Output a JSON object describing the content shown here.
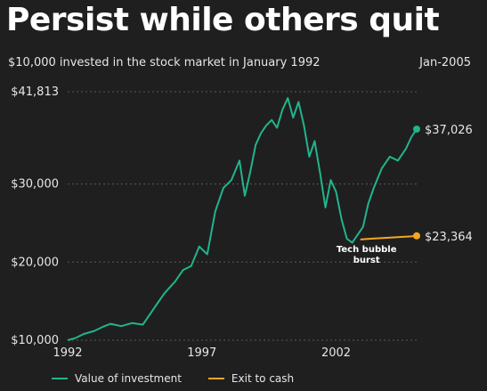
{
  "title": "Persist while others quit",
  "subtitle": "$10,000 invested in the stock market in January 1992",
  "end_date_label": "Jan-2005",
  "colors": {
    "investment": "#21b48d",
    "cash": "#f5a623",
    "grid": "#5a5a5a",
    "text": "#e6e6e6"
  },
  "chart_data": {
    "type": "line",
    "ylim": [
      10000,
      41813
    ],
    "xlim": [
      1992.0,
      2005.0
    ],
    "y_ticks": [
      {
        "value": 41813,
        "label": "$41,813"
      },
      {
        "value": 30000,
        "label": "$30,000"
      },
      {
        "value": 20000,
        "label": "$20,000"
      },
      {
        "value": 10000,
        "label": "$10,000"
      }
    ],
    "x_ticks": [
      {
        "value": 1992,
        "label": "1992"
      },
      {
        "value": 1997,
        "label": "1997"
      },
      {
        "value": 2002,
        "label": "2002"
      }
    ],
    "grid": true,
    "legend_placement": "bottom",
    "series": [
      {
        "name": "Value of investment",
        "color_key": "investment",
        "end_label": "$37,026",
        "x": [
          1992.0,
          1992.3,
          1992.6,
          1993.0,
          1993.3,
          1993.6,
          1994.0,
          1994.4,
          1994.8,
          1995.0,
          1995.3,
          1995.6,
          1996.0,
          1996.3,
          1996.6,
          1996.9,
          1997.2,
          1997.5,
          1997.8,
          1998.1,
          1998.4,
          1998.6,
          1998.8,
          1999.0,
          1999.2,
          1999.4,
          1999.6,
          1999.8,
          2000.0,
          2000.2,
          2000.4,
          2000.6,
          2000.8,
          2001.0,
          2001.2,
          2001.4,
          2001.6,
          2001.8,
          2002.0,
          2002.2,
          2002.4,
          2002.6,
          2002.8,
          2003.0,
          2003.2,
          2003.4,
          2003.7,
          2004.0,
          2004.3,
          2004.6,
          2004.8,
          2005.0
        ],
        "y": [
          10000,
          10300,
          10800,
          11200,
          11700,
          12100,
          11800,
          12200,
          12000,
          13000,
          14500,
          16000,
          17500,
          19000,
          19500,
          22000,
          21000,
          26500,
          29500,
          30500,
          33000,
          28500,
          31500,
          35000,
          36500,
          37500,
          38200,
          37200,
          39500,
          41000,
          38500,
          40500,
          37500,
          33500,
          35500,
          31500,
          27000,
          30500,
          29000,
          25500,
          23000,
          22500,
          23500,
          24500,
          27500,
          29500,
          32000,
          33500,
          33000,
          34500,
          36000,
          37026
        ]
      },
      {
        "name": "Exit to cash",
        "color_key": "cash",
        "end_label": "$23,364",
        "x": [
          2002.9,
          2003.3,
          2003.8,
          2004.3,
          2004.8,
          2005.0
        ],
        "y": [
          22900,
          23000,
          23100,
          23200,
          23300,
          23364
        ]
      }
    ],
    "annotations": [
      {
        "text": "Tech bubble burst",
        "x": 2003.0,
        "y": 22900
      }
    ]
  },
  "legend": [
    {
      "label": "Value of investment",
      "color_key": "investment"
    },
    {
      "label": "Exit to cash",
      "color_key": "cash"
    }
  ]
}
